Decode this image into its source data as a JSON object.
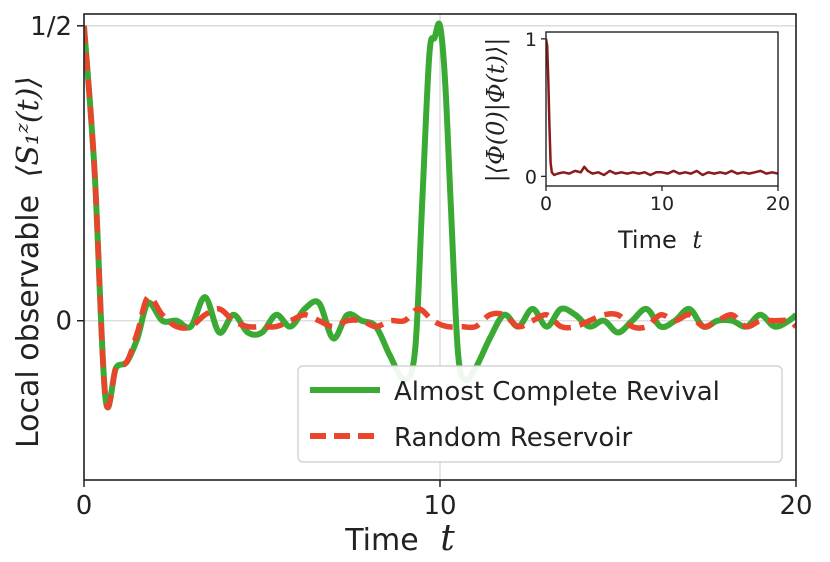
{
  "chart_data": [
    {
      "type": "line",
      "title": "",
      "xlabel": "Time",
      "xlabel_symbol": "t",
      "ylabel": "Local observable",
      "ylabel_symbol": "⟨S₁ᶻ(t)⟩",
      "xlim": [
        0,
        20
      ],
      "ylim": [
        -0.27,
        0.52
      ],
      "x_ticks": [
        0,
        10,
        20
      ],
      "x_tick_labels": [
        "0",
        "10",
        "20"
      ],
      "y_ticks": [
        0,
        0.5
      ],
      "y_tick_labels": [
        "0",
        "1/2"
      ],
      "grid": true,
      "legend": "bottom-right",
      "series": [
        {
          "name": "Almost Complete Revival",
          "color": "#3aaa35",
          "style": "solid",
          "x": [
            0,
            0.3,
            0.6,
            0.9,
            1.2,
            1.5,
            1.8,
            2.2,
            2.6,
            3.0,
            3.4,
            3.8,
            4.2,
            4.6,
            5.0,
            5.4,
            5.8,
            6.2,
            6.6,
            7.0,
            7.4,
            7.8,
            8.2,
            8.6,
            9.0,
            9.3,
            9.5,
            9.7,
            9.85,
            10.0,
            10.15,
            10.3,
            10.5,
            10.7,
            11.0,
            11.4,
            11.8,
            12.2,
            12.6,
            13.0,
            13.4,
            13.8,
            14.2,
            14.6,
            15.0,
            15.4,
            15.8,
            16.2,
            16.6,
            17.0,
            17.4,
            17.8,
            18.2,
            18.6,
            19.0,
            19.4,
            19.8,
            20.0
          ],
          "y": [
            0.5,
            0.25,
            -0.13,
            -0.08,
            -0.07,
            -0.03,
            0.03,
            0.0,
            0.0,
            -0.01,
            0.04,
            -0.02,
            0.01,
            -0.02,
            -0.02,
            0.01,
            -0.01,
            0.02,
            0.03,
            -0.03,
            0.01,
            0.0,
            -0.01,
            -0.06,
            -0.1,
            -0.05,
            0.2,
            0.45,
            0.48,
            0.5,
            0.4,
            0.2,
            -0.05,
            -0.1,
            -0.08,
            -0.03,
            0.01,
            -0.01,
            0.02,
            -0.01,
            0.02,
            0.01,
            -0.01,
            0.0,
            -0.02,
            0.0,
            0.02,
            -0.01,
            0.0,
            0.02,
            -0.01,
            0.0,
            0.0,
            -0.01,
            0.01,
            -0.01,
            0.0,
            0.01
          ]
        },
        {
          "name": "Random Reservoir",
          "color": "#e8452c",
          "style": "dashed",
          "x": [
            0,
            0.3,
            0.6,
            0.9,
            1.2,
            1.5,
            1.8,
            2.2,
            2.6,
            3.0,
            3.4,
            3.8,
            4.2,
            4.6,
            5.0,
            5.4,
            5.8,
            6.2,
            6.6,
            7.0,
            7.4,
            7.8,
            8.2,
            8.6,
            9.0,
            9.4,
            9.8,
            10.2,
            10.6,
            11.0,
            11.4,
            11.8,
            12.2,
            12.6,
            13.0,
            13.4,
            13.8,
            14.2,
            14.6,
            15.0,
            15.4,
            15.8,
            16.2,
            16.6,
            17.0,
            17.4,
            17.8,
            18.2,
            18.6,
            19.0,
            19.4,
            19.8,
            20.0
          ],
          "y": [
            0.5,
            0.25,
            -0.13,
            -0.08,
            -0.07,
            -0.02,
            0.04,
            0.01,
            -0.01,
            -0.01,
            0.01,
            0.02,
            0.0,
            -0.01,
            -0.01,
            -0.01,
            0.0,
            0.01,
            0.0,
            -0.01,
            0.0,
            0.0,
            -0.01,
            0.0,
            0.0,
            0.02,
            0.0,
            -0.01,
            -0.01,
            -0.01,
            0.01,
            0.01,
            -0.01,
            0.0,
            0.01,
            -0.01,
            -0.01,
            0.0,
            0.01,
            0.01,
            -0.01,
            -0.01,
            0.01,
            0.0,
            0.01,
            -0.01,
            0.0,
            0.01,
            -0.01,
            0.0,
            0.0,
            0.0,
            -0.01
          ]
        }
      ]
    },
    {
      "type": "line",
      "title": "",
      "xlabel": "Time",
      "xlabel_symbol": "t",
      "ylabel": "|⟨Φ(0)|Φ(t)⟩|",
      "xlim": [
        0,
        20
      ],
      "ylim": [
        -0.07,
        1.05
      ],
      "x_ticks": [
        0,
        10,
        20
      ],
      "x_tick_labels": [
        "0",
        "10",
        "20"
      ],
      "y_ticks": [
        0,
        1
      ],
      "y_tick_labels": [
        "0",
        "1"
      ],
      "grid": false,
      "series": [
        {
          "color": "#8b1a1a",
          "style": "solid",
          "x": [
            0,
            0.1,
            0.2,
            0.3,
            0.4,
            0.5,
            0.7,
            1.0,
            1.5,
            2.0,
            2.5,
            3.0,
            3.3,
            3.6,
            4.0,
            4.5,
            5.0,
            5.5,
            6.0,
            6.5,
            7.0,
            7.5,
            8.0,
            8.5,
            9.0,
            9.5,
            10.0,
            10.5,
            11.0,
            11.5,
            12.0,
            12.5,
            13.0,
            13.5,
            14.0,
            14.5,
            15.0,
            15.5,
            16.0,
            16.5,
            17.0,
            17.5,
            18.0,
            18.5,
            19.0,
            19.5,
            20.0
          ],
          "y": [
            1.0,
            0.95,
            0.7,
            0.35,
            0.1,
            0.03,
            0.01,
            0.02,
            0.03,
            0.02,
            0.04,
            0.03,
            0.07,
            0.04,
            0.02,
            0.03,
            0.01,
            0.04,
            0.02,
            0.03,
            0.02,
            0.03,
            0.02,
            0.03,
            0.01,
            0.03,
            0.03,
            0.02,
            0.04,
            0.02,
            0.03,
            0.02,
            0.04,
            0.01,
            0.03,
            0.02,
            0.03,
            0.02,
            0.04,
            0.02,
            0.03,
            0.02,
            0.03,
            0.04,
            0.02,
            0.03,
            0.02
          ]
        }
      ]
    }
  ]
}
